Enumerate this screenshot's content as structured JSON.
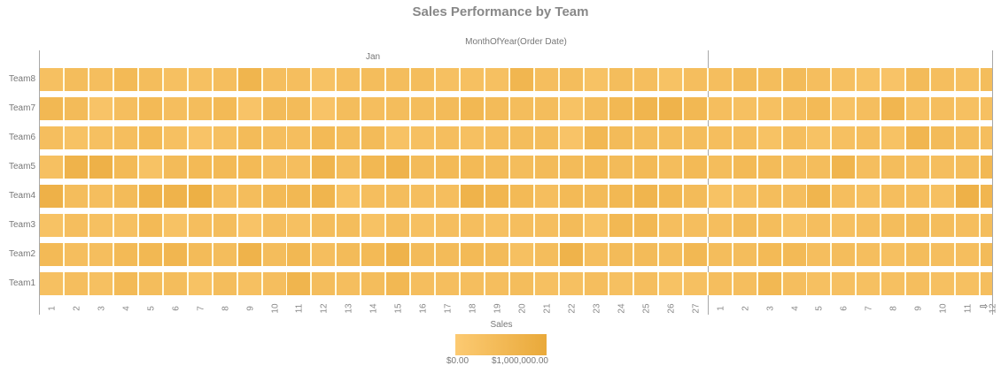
{
  "title": "Sales Performance by Team",
  "x_axis_title": "MonthOfYear(Order Date)",
  "legend": {
    "title": "Sales",
    "min_label": "$0.00",
    "max_label": "$1,000,000.00",
    "color_min": "#fcca72",
    "color_max": "#e9a93a"
  },
  "scroll_icon": "⇨",
  "chart_data": {
    "type": "heatmap",
    "title": "Sales Performance by Team",
    "xlabel": "MonthOfYear(Order Date)",
    "ylabel": "",
    "legend_title": "Sales",
    "value_range": [
      0,
      1000000
    ],
    "value_unit": "relative intensity 0-1 (estimated from color)",
    "months": [
      {
        "name": "Jan",
        "days": [
          "1",
          "2",
          "3",
          "4",
          "5",
          "6",
          "7",
          "8",
          "9",
          "10",
          "11",
          "12",
          "13",
          "14",
          "15",
          "16",
          "17",
          "18",
          "19",
          "20",
          "21",
          "22",
          "23",
          "24",
          "25",
          "26",
          "27"
        ]
      },
      {
        "name": "",
        "days": [
          "1",
          "2",
          "3",
          "4",
          "5",
          "6",
          "7",
          "8",
          "9",
          "10",
          "11",
          "12"
        ]
      }
    ],
    "teams": [
      "Team8",
      "Team7",
      "Team6",
      "Team5",
      "Team4",
      "Team3",
      "Team2",
      "Team1"
    ],
    "values": {
      "Team8": [
        0.3,
        0.4,
        0.35,
        0.5,
        0.4,
        0.3,
        0.3,
        0.35,
        0.65,
        0.35,
        0.35,
        0.25,
        0.35,
        0.4,
        0.4,
        0.4,
        0.3,
        0.3,
        0.3,
        0.6,
        0.35,
        0.4,
        0.25,
        0.4,
        0.35,
        0.25,
        0.35,
        0.35,
        0.45,
        0.4,
        0.45,
        0.35,
        0.3,
        0.25,
        0.2,
        0.45,
        0.35,
        0.3,
        0.4
      ],
      "Team7": [
        0.55,
        0.45,
        0.2,
        0.35,
        0.5,
        0.35,
        0.4,
        0.5,
        0.2,
        0.45,
        0.45,
        0.2,
        0.4,
        0.35,
        0.4,
        0.4,
        0.45,
        0.55,
        0.45,
        0.4,
        0.4,
        0.25,
        0.4,
        0.55,
        0.65,
        0.7,
        0.55,
        0.35,
        0.3,
        0.3,
        0.35,
        0.5,
        0.25,
        0.35,
        0.6,
        0.3,
        0.35,
        0.3,
        0.3
      ],
      "Team6": [
        0.35,
        0.25,
        0.3,
        0.35,
        0.5,
        0.3,
        0.2,
        0.3,
        0.45,
        0.35,
        0.35,
        0.5,
        0.4,
        0.45,
        0.25,
        0.3,
        0.35,
        0.3,
        0.35,
        0.4,
        0.4,
        0.2,
        0.55,
        0.45,
        0.4,
        0.4,
        0.4,
        0.35,
        0.35,
        0.25,
        0.35,
        0.25,
        0.3,
        0.35,
        0.25,
        0.6,
        0.45,
        0.4,
        0.35
      ],
      "Team5": [
        0.3,
        0.7,
        0.75,
        0.5,
        0.25,
        0.45,
        0.5,
        0.5,
        0.5,
        0.35,
        0.35,
        0.65,
        0.4,
        0.55,
        0.7,
        0.45,
        0.5,
        0.5,
        0.45,
        0.4,
        0.45,
        0.45,
        0.5,
        0.45,
        0.5,
        0.4,
        0.5,
        0.4,
        0.5,
        0.45,
        0.35,
        0.4,
        0.65,
        0.35,
        0.4,
        0.35,
        0.35,
        0.4,
        0.55
      ],
      "Team4": [
        0.75,
        0.4,
        0.35,
        0.45,
        0.7,
        0.7,
        0.8,
        0.35,
        0.4,
        0.5,
        0.55,
        0.65,
        0.25,
        0.35,
        0.4,
        0.35,
        0.35,
        0.7,
        0.6,
        0.5,
        0.35,
        0.5,
        0.45,
        0.55,
        0.65,
        0.55,
        0.45,
        0.25,
        0.3,
        0.4,
        0.35,
        0.65,
        0.35,
        0.3,
        0.35,
        0.35,
        0.3,
        0.75,
        0.6
      ],
      "Team3": [
        0.25,
        0.35,
        0.3,
        0.3,
        0.5,
        0.25,
        0.35,
        0.4,
        0.2,
        0.35,
        0.3,
        0.4,
        0.4,
        0.25,
        0.4,
        0.3,
        0.35,
        0.35,
        0.3,
        0.35,
        0.35,
        0.45,
        0.25,
        0.55,
        0.55,
        0.35,
        0.35,
        0.35,
        0.45,
        0.4,
        0.25,
        0.35,
        0.3,
        0.35,
        0.4,
        0.45,
        0.4,
        0.35,
        0.4
      ],
      "Team2": [
        0.5,
        0.35,
        0.35,
        0.5,
        0.55,
        0.6,
        0.45,
        0.4,
        0.7,
        0.4,
        0.55,
        0.35,
        0.45,
        0.5,
        0.7,
        0.45,
        0.45,
        0.5,
        0.45,
        0.3,
        0.4,
        0.7,
        0.35,
        0.45,
        0.45,
        0.4,
        0.55,
        0.4,
        0.4,
        0.5,
        0.5,
        0.35,
        0.4,
        0.35,
        0.3,
        0.4,
        0.35,
        0.35,
        0.45
      ],
      "Team1": [
        0.3,
        0.35,
        0.3,
        0.5,
        0.4,
        0.4,
        0.25,
        0.4,
        0.3,
        0.35,
        0.65,
        0.4,
        0.35,
        0.4,
        0.55,
        0.35,
        0.35,
        0.35,
        0.35,
        0.4,
        0.3,
        0.3,
        0.35,
        0.3,
        0.35,
        0.25,
        0.3,
        0.35,
        0.35,
        0.55,
        0.35,
        0.3,
        0.3,
        0.3,
        0.3,
        0.35,
        0.3,
        0.3,
        0.35
      ]
    }
  }
}
